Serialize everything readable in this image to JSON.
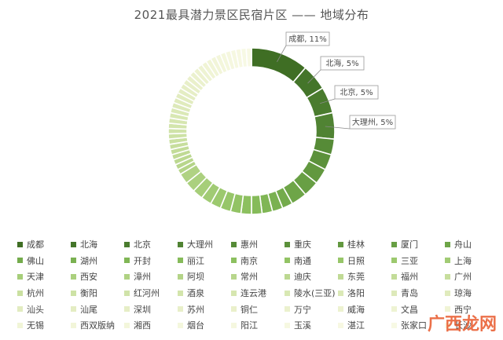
{
  "title": "2021最具潜力景区民宿片区 —— 地域分布",
  "watermark": "广西龙网",
  "chart_data": {
    "type": "pie",
    "donut": true,
    "title": "2021最具潜力景区民宿片区 —— 地域分布",
    "legend_position": "bottom",
    "callouts": [
      {
        "category": "成都",
        "text": "成都, 11%"
      },
      {
        "category": "北海",
        "text": "北海, 5%"
      },
      {
        "category": "北京",
        "text": "北京, 5%"
      },
      {
        "category": "大理州",
        "text": "大理州, 5%"
      }
    ],
    "categories": [
      "成都",
      "北海",
      "北京",
      "大理州",
      "惠州",
      "重庆",
      "桂林",
      "厦门",
      "舟山",
      "佛山",
      "湖州",
      "开封",
      "丽江",
      "南京",
      "南通",
      "日照",
      "三亚",
      "上海",
      "天津",
      "西安",
      "漳州",
      "阿坝",
      "常州",
      "迪庆",
      "东莞",
      "福州",
      "广州",
      "杭州",
      "衡阳",
      "红河州",
      "酒泉",
      "连云港",
      "陵水(三亚)",
      "洛阳",
      "青岛",
      "琼海",
      "汕头",
      "汕尾",
      "深圳",
      "苏州",
      "铜仁",
      "万宁",
      "威海",
      "文昌",
      "西宁",
      "无锡",
      "西双版纳",
      "湘西",
      "烟台",
      "阳江",
      "玉溪",
      "湛江",
      "张家口",
      "长沙"
    ],
    "values": [
      11,
      5,
      5,
      5,
      3,
      3,
      3,
      3,
      3,
      2,
      2,
      2,
      2,
      2,
      2,
      2,
      2,
      2,
      2,
      2,
      2,
      1,
      1,
      1,
      1,
      1,
      1,
      1,
      1,
      1,
      1,
      1,
      1,
      1,
      1,
      1,
      1,
      1,
      1,
      1,
      1,
      1,
      1,
      1,
      1,
      1,
      1,
      1,
      1,
      1,
      1,
      1,
      1,
      1
    ],
    "colors": [
      "#3f6e24",
      "#44752a",
      "#4a7c2e",
      "#508333",
      "#568b37",
      "#5c913b",
      "#62983f",
      "#689f44",
      "#6ea548",
      "#74ab4c",
      "#7ab151",
      "#80b655",
      "#86bb5a",
      "#8cc05f",
      "#92c364",
      "#97c669",
      "#9cc96e",
      "#a1cb74",
      "#a6ce79",
      "#abd07e",
      "#b0d283",
      "#b4d488",
      "#b8d68c",
      "#bcd891",
      "#c0da95",
      "#c3dc99",
      "#c7de9d",
      "#cae0a1",
      "#cde2a5",
      "#d0e3a9",
      "#d3e5ac",
      "#d6e6b0",
      "#d8e8b3",
      "#dbe9b7",
      "#dde9ba",
      "#e0ebbd",
      "#e2ecc0",
      "#e4edc3",
      "#e6eec6",
      "#e8efc9",
      "#eaf0cb",
      "#ebf1ce",
      "#edf2d0",
      "#eef3d3",
      "#f0f4d5",
      "#f1f5d7",
      "#f2f5d9",
      "#f3f6db",
      "#f4f7dd",
      "#f5f7df",
      "#f6f8e1",
      "#f7f8e2",
      "#f7f9e4",
      "#f8f9e5"
    ]
  }
}
